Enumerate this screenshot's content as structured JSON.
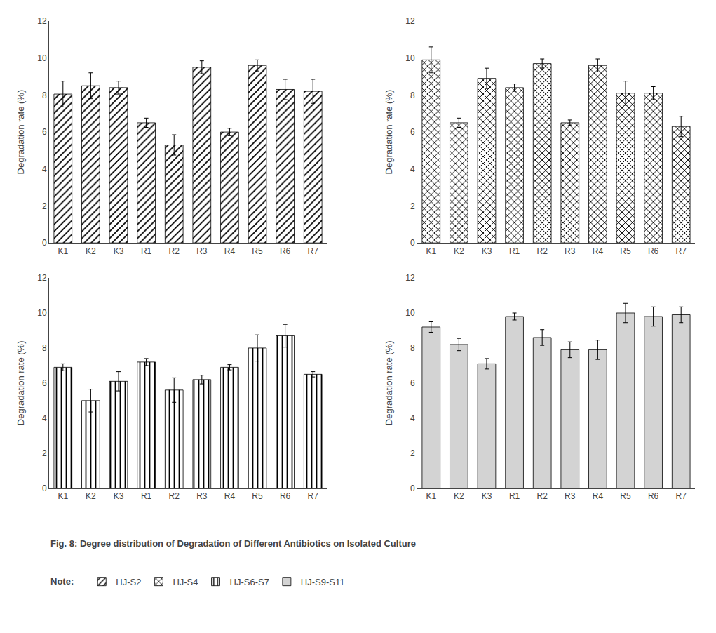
{
  "chart_data": [
    {
      "type": "bar",
      "categories": [
        "K1",
        "K2",
        "K3",
        "R1",
        "R2",
        "R3",
        "R4",
        "R5",
        "R6",
        "R7"
      ],
      "series": [
        {
          "name": "HJ-S2",
          "color": "white",
          "marker": "/",
          "values": [
            8.05,
            8.5,
            8.4,
            6.5,
            5.3,
            9.5,
            6.0,
            9.6,
            8.3,
            8.2
          ],
          "errors": [
            0.7,
            0.7,
            0.35,
            0.25,
            0.55,
            0.35,
            0.2,
            0.3,
            0.55,
            0.65
          ]
        }
      ],
      "ylabel": "Degradation rate (%)",
      "ylim": [
        0,
        12
      ],
      "yticks": [
        0,
        2,
        4,
        6,
        8,
        10,
        12
      ],
      "grid": false
    },
    {
      "type": "bar",
      "categories": [
        "K1",
        "K2",
        "K3",
        "R1",
        "R2",
        "R3",
        "R4",
        "R5",
        "R6",
        "R7"
      ],
      "series": [
        {
          "name": "HJ-S4",
          "color": "white",
          "marker": "x",
          "values": [
            9.9,
            6.5,
            8.9,
            8.4,
            9.7,
            6.5,
            9.6,
            8.1,
            8.1,
            6.3
          ],
          "errors": [
            0.7,
            0.25,
            0.55,
            0.2,
            0.25,
            0.15,
            0.35,
            0.65,
            0.35,
            0.55
          ]
        }
      ],
      "ylabel": "Degradation rate (%)",
      "ylim": [
        0,
        12
      ],
      "yticks": [
        0,
        2,
        4,
        6,
        8,
        10,
        12
      ],
      "grid": false
    },
    {
      "type": "bar",
      "categories": [
        "K1",
        "K2",
        "K3",
        "R1",
        "R2",
        "R3",
        "R4",
        "R5",
        "R6",
        "R7"
      ],
      "series": [
        {
          "name": "HJ-S6-S7",
          "color": "white",
          "marker": "|",
          "values": [
            6.9,
            5.0,
            6.1,
            7.2,
            5.6,
            6.2,
            6.9,
            8.0,
            8.7,
            6.5
          ],
          "errors": [
            0.2,
            0.65,
            0.55,
            0.2,
            0.7,
            0.25,
            0.15,
            0.75,
            0.65,
            0.15
          ]
        }
      ],
      "ylabel": "Degradation rate (%)",
      "ylim": [
        0,
        12
      ],
      "yticks": [
        0,
        2,
        4,
        6,
        8,
        10,
        12
      ],
      "grid": false
    },
    {
      "type": "bar",
      "categories": [
        "K1",
        "K2",
        "K3",
        "R1",
        "R2",
        "R3",
        "R4",
        "R5",
        "R6",
        "R7"
      ],
      "series": [
        {
          "name": "HJ-S9-S11",
          "color": "#d3d3d3",
          "marker": "solid",
          "values": [
            9.2,
            8.2,
            7.1,
            9.8,
            8.6,
            7.9,
            7.9,
            10.0,
            9.8,
            9.9
          ],
          "errors": [
            0.3,
            0.35,
            0.3,
            0.2,
            0.45,
            0.45,
            0.55,
            0.55,
            0.55,
            0.45
          ]
        }
      ],
      "ylabel": "Degradation rate (%)",
      "ylim": [
        0,
        12
      ],
      "yticks": [
        0,
        2,
        4,
        6,
        8,
        10,
        12
      ],
      "grid": false
    }
  ],
  "annotations": [
    "Fig. 8: Degree distribution of Degradation of Different Antibiotics on Isolated Culture",
    "Note:"
  ],
  "legend": "bottom"
}
